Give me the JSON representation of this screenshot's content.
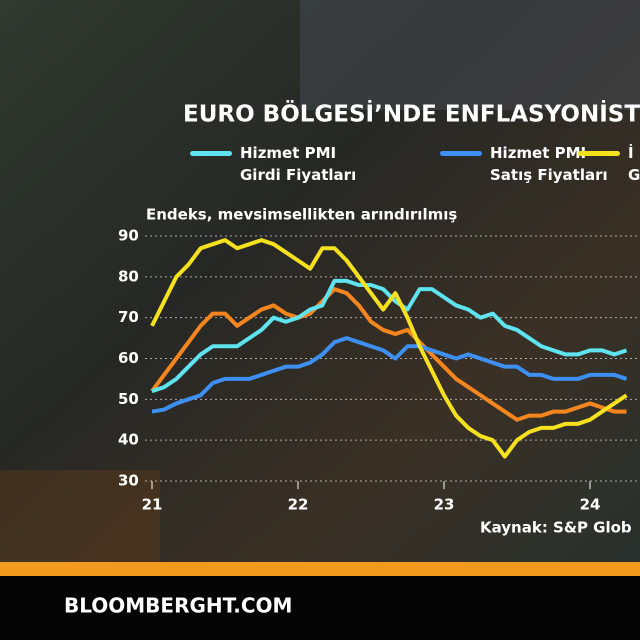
{
  "chart_data": {
    "type": "line",
    "title": "EURO BÖLGESİ’NDE ENFLASYONİST",
    "subtitle": "Endeks, mevsimsellikten arındırılmış",
    "source": "Kaynak: S&P Glob",
    "x": [
      21,
      21.0833,
      21.1667,
      21.25,
      21.3333,
      21.4167,
      21.5,
      21.5833,
      21.6667,
      21.75,
      21.8333,
      21.9167,
      22,
      22.0833,
      22.1667,
      22.25,
      22.3333,
      22.4167,
      22.5,
      22.5833,
      22.6667,
      22.75,
      22.8333,
      22.9167,
      23,
      23.0833,
      23.1667,
      23.25,
      23.3333,
      23.4167,
      23.5,
      23.5833,
      23.6667,
      23.75,
      23.8333,
      23.9167,
      24,
      24.0833,
      24.1667,
      24.25
    ],
    "series": [
      {
        "name": "Hizmet PMI Girdi Fiyatları",
        "color": "#5fe3ef",
        "values": [
          52,
          53,
          55,
          58,
          61,
          63,
          63,
          63,
          65,
          67,
          70,
          69,
          70,
          72,
          73,
          79,
          79,
          78,
          78,
          77,
          74,
          72,
          77,
          77,
          75,
          73,
          72,
          70,
          71,
          68,
          67,
          65,
          63,
          62,
          61,
          61,
          62,
          62,
          61,
          62
        ]
      },
      {
        "name": "Hizmet PMI Satış Fiyatları",
        "color": "#3d8ff2",
        "values": [
          47,
          47.5,
          49,
          50,
          51,
          54,
          55,
          55,
          55,
          56,
          57,
          58,
          58,
          59,
          61,
          64,
          65,
          64,
          63,
          62,
          60,
          63,
          63,
          62,
          61,
          60,
          61,
          60,
          59,
          58,
          58,
          56,
          56,
          55,
          55,
          55,
          56,
          56,
          56,
          55
        ]
      },
      {
        "color": "#f5861f",
        "values": [
          52,
          56,
          60,
          64,
          68,
          71,
          71,
          68,
          70,
          72,
          73,
          71,
          70,
          71,
          74,
          77,
          76,
          73,
          69,
          67,
          66,
          67,
          64,
          61,
          58,
          55,
          53,
          51,
          49,
          47,
          45,
          46,
          46,
          47,
          47,
          48,
          49,
          48,
          47,
          47
        ]
      },
      {
        "name": "İ G",
        "color": "#f6e11e",
        "values": [
          68,
          74,
          80,
          83,
          87,
          88,
          89,
          87,
          88,
          89,
          88,
          86,
          84,
          82,
          87,
          87,
          84,
          80,
          76,
          72,
          76,
          70,
          63,
          57,
          51,
          46,
          43,
          41,
          40,
          36,
          40,
          42,
          43,
          43,
          44,
          44,
          45,
          47,
          49,
          51
        ]
      }
    ],
    "xlim": [
      20.95,
      24.34
    ],
    "xticks": [
      21,
      22,
      23,
      24
    ],
    "ylim": [
      29,
      92
    ],
    "yticks": [
      30,
      40,
      50,
      60,
      70,
      80,
      90
    ],
    "grid": true
  },
  "footer": "BLOOMBERGHT.COM"
}
